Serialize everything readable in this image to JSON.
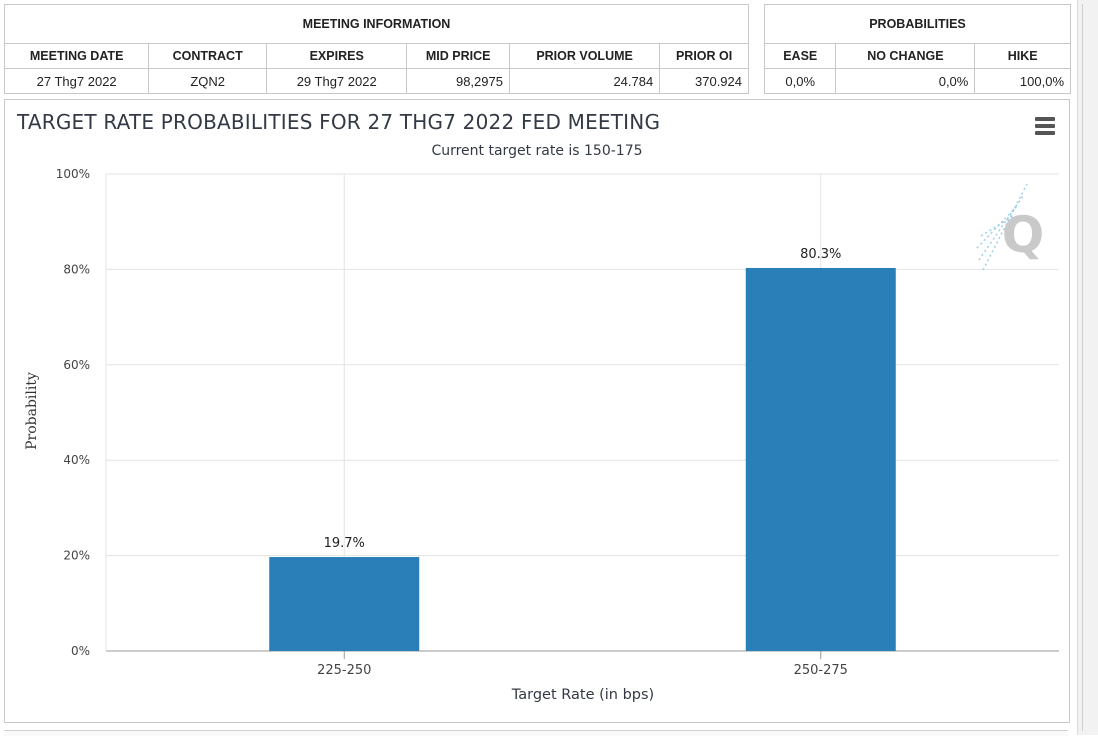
{
  "meeting_info": {
    "title": "MEETING INFORMATION",
    "headers": [
      "MEETING DATE",
      "CONTRACT",
      "EXPIRES",
      "MID PRICE",
      "PRIOR VOLUME",
      "PRIOR OI"
    ],
    "values": [
      "27 Thg7 2022",
      "ZQN2",
      "29 Thg7 2022",
      "98,2975",
      "24.784",
      "370.924"
    ]
  },
  "probabilities": {
    "title": "PROBABILITIES",
    "headers": [
      "EASE",
      "NO CHANGE",
      "HIKE"
    ],
    "values": [
      "0,0%",
      "0,0%",
      "100,0%"
    ]
  },
  "chart_data": {
    "type": "bar",
    "title": "TARGET RATE PROBABILITIES FOR 27 THG7 2022 FED MEETING",
    "subtitle": "Current target rate is 150-175",
    "categories": [
      "225-250",
      "250-275"
    ],
    "values": [
      19.7,
      80.3
    ],
    "data_labels": [
      "19.7%",
      "80.3%"
    ],
    "xlabel": "Target Rate (in bps)",
    "ylabel": "Probability",
    "ylim": [
      0,
      100
    ],
    "yticks": [
      0,
      20,
      40,
      60,
      80,
      100
    ],
    "ytick_labels": [
      "0%",
      "20%",
      "40%",
      "60%",
      "80%",
      "100%"
    ],
    "grid": true,
    "bar_color": "#2a7fb8"
  },
  "icons": {
    "menu": "hamburger-menu-icon",
    "watermark": "quikstrike-logo-icon"
  }
}
